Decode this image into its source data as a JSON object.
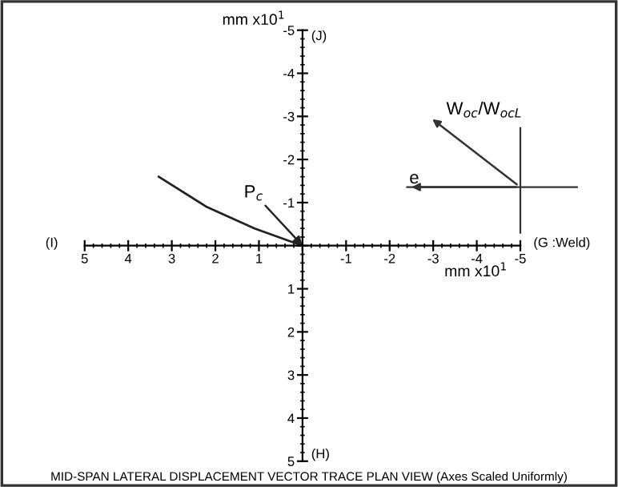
{
  "chart_data": {
    "type": "line",
    "title": "MID-SPAN LATERAL DISPLACEMENT VECTOR TRACE PLAN VIEW (Axes Scaled Uniformly)",
    "xlabel": "mm x10$^{1}$",
    "ylabel": "mm x10$^{1}$",
    "x": [
      3.3,
      2.2,
      1.1,
      0
    ],
    "series": [
      {
        "color": "#222222",
        "values": [
          -1.6,
          -0.9,
          -0.4,
          0
        ]
      }
    ],
    "xlim": [
      5,
      -5
    ],
    "ylim": [
      5,
      -5
    ],
    "xticks": [
      5,
      4,
      3,
      2,
      1,
      {
        "value": 0,
        "label": null
      },
      -1,
      -2,
      -3,
      -4,
      -5
    ],
    "yticks": [
      -5,
      -4,
      -3,
      -2,
      -1,
      {
        "value": 0,
        "label": null
      },
      1,
      2,
      3,
      4,
      5
    ],
    "grid": false,
    "legend": false,
    "marker": "none",
    "line_style": "solid",
    "annotations": [
      {
        "text": "P$_{c}$",
        "x": 0,
        "y": 0
      },
      "(J)",
      "(H)",
      "(I)",
      "(G :Weld)",
      "e",
      "W$_{oc}$/W$_{ocL}$"
    ]
  }
}
